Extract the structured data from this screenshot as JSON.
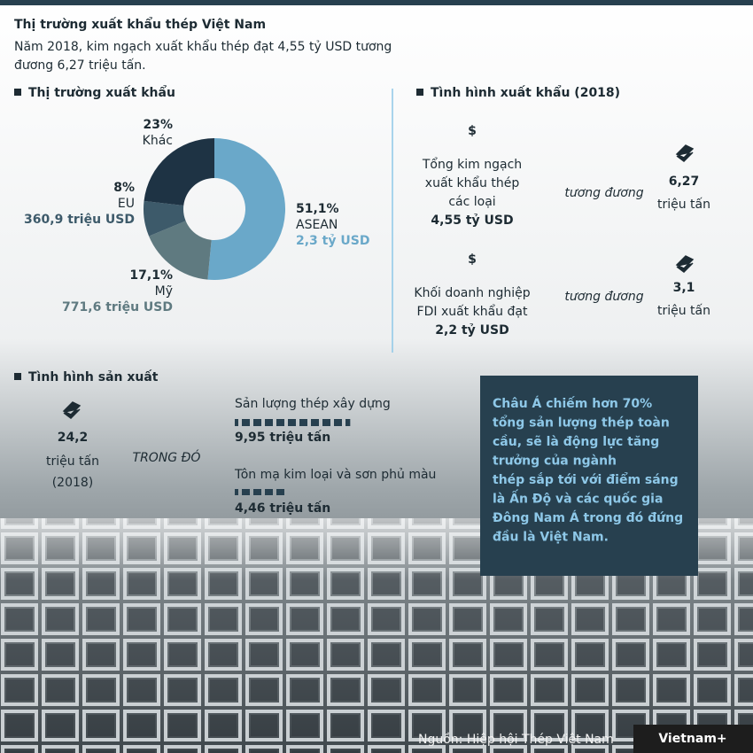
{
  "header": {
    "title": "Thị trường xuất khẩu thép Việt Nam",
    "subtitle_lines": [
      "Năm 2018, kim ngạch xuất khẩu thép đạt 4,55 tỷ USD tương",
      "đương 6,27 triệu tấn."
    ]
  },
  "chart_data": {
    "type": "pie",
    "title": "Thị trường xuất khẩu",
    "categories": [
      "ASEAN",
      "Mỹ",
      "EU",
      "Khác"
    ],
    "values": [
      51.1,
      17.1,
      8,
      23
    ],
    "value_labels": [
      "51,1%",
      "17,1%",
      "8%",
      "23%"
    ],
    "amount_labels": [
      "2,3 tỷ USD",
      "771,6 triệu USD",
      "360,9 triệu USD",
      null
    ],
    "colors": [
      "#6aa8c9",
      "#5f7a80",
      "#3d5a6a",
      "#1e3344"
    ],
    "donut": true
  },
  "export_status": {
    "title": "Tình hình xuất khẩu (2018)",
    "equivalent": "tương đương",
    "items": [
      {
        "lines": [
          "Tổng kim ngạch",
          "xuất khẩu thép",
          "các loại"
        ],
        "amount": "4,55 tỷ USD",
        "tonnage": "6,27",
        "unit": "triệu tấn"
      },
      {
        "lines": [
          "Khối doanh nghiệp",
          "FDI xuất khẩu đạt"
        ],
        "amount": "2,2 tỷ USD",
        "tonnage": "3,1",
        "unit": "triệu tấn"
      }
    ]
  },
  "production": {
    "title": "Tình hình sản xuất",
    "total": "24,2",
    "unit": "triệu tấn",
    "year": "(2018)",
    "including": "TRONG ĐÓ",
    "items": [
      {
        "name": "Sản lượng thép xây dựng",
        "value": 9.95,
        "label": "9,95 triệu tấn"
      },
      {
        "name": "Tôn mạ kim loại và sơn phủ màu",
        "value": 4.46,
        "label": "4,46 triệu tấn"
      }
    ]
  },
  "note_lines": [
    "Châu Á chiếm hơn 70%",
    "tổng sản lượng thép toàn",
    "cầu, sẽ là động lực tăng",
    "trưởng của ngành",
    "thép sắp tới với điểm sáng",
    "là Ấn Độ và các quốc gia",
    "Đông Nam Á trong đó đứng",
    "đầu là Việt Nam."
  ],
  "source": "Nguồn: Hiệp hội Thép Việt Nam",
  "logo": "Vietnam+"
}
